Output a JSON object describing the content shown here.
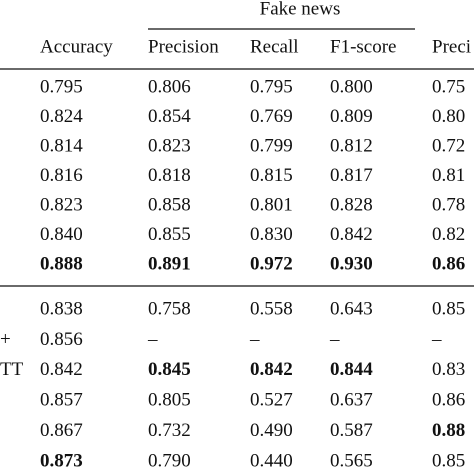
{
  "table": {
    "group_header": "Fake news",
    "columns": [
      "Accuracy",
      "Precision",
      "Recall",
      "F1-score",
      "Preci"
    ],
    "groups": [
      {
        "rows": [
          {
            "cells": [
              "0.795",
              "0.806",
              "0.795",
              "0.800",
              "0.75"
            ],
            "bold": []
          },
          {
            "cells": [
              "0.824",
              "0.854",
              "0.769",
              "0.809",
              "0.80"
            ],
            "bold": []
          },
          {
            "cells": [
              "0.814",
              "0.823",
              "0.799",
              "0.812",
              "0.72"
            ],
            "bold": []
          },
          {
            "cells": [
              "0.816",
              "0.818",
              "0.815",
              "0.817",
              "0.81"
            ],
            "bold": []
          },
          {
            "cells": [
              "0.823",
              "0.858",
              "0.801",
              "0.828",
              "0.78"
            ],
            "bold": []
          },
          {
            "cells": [
              "0.840",
              "0.855",
              "0.830",
              "0.842",
              "0.82"
            ],
            "bold": []
          },
          {
            "cells": [
              "0.888",
              "0.891",
              "0.972",
              "0.930",
              "0.86"
            ],
            "bold": [
              0,
              1,
              2,
              3,
              4
            ]
          }
        ]
      },
      {
        "rows": [
          {
            "cells": [
              "0.838",
              "0.758",
              "0.558",
              "0.643",
              "0.85"
            ],
            "bold": []
          },
          {
            "label": "+",
            "cells": [
              "0.856",
              "–",
              "–",
              "–",
              "–"
            ],
            "bold": []
          },
          {
            "label": "TT",
            "cells": [
              "0.842",
              "0.845",
              "0.842",
              "0.844",
              "0.83"
            ],
            "bold": [
              1,
              2,
              3
            ]
          },
          {
            "cells": [
              "0.857",
              "0.805",
              "0.527",
              "0.637",
              "0.86"
            ],
            "bold": []
          },
          {
            "cells": [
              "0.867",
              "0.732",
              "0.490",
              "0.587",
              "0.88"
            ],
            "bold": [
              4
            ]
          },
          {
            "cells": [
              "0.873",
              "0.790",
              "0.440",
              "0.565",
              "0.85"
            ],
            "bold": [
              0
            ]
          }
        ]
      }
    ]
  }
}
